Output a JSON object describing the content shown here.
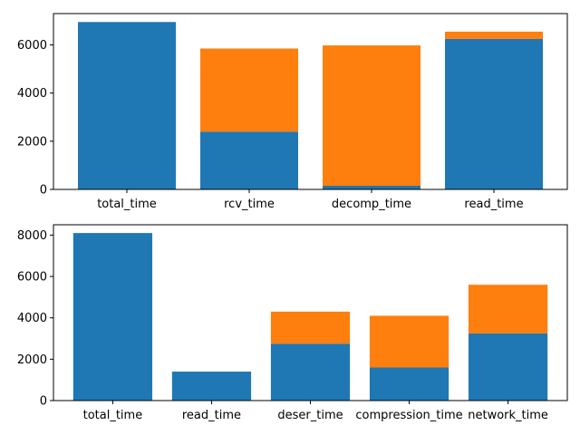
{
  "chart_data": [
    {
      "type": "bar",
      "stacked": true,
      "categories": [
        "total_time",
        "rcv_time",
        "decomp_time",
        "read_time"
      ],
      "series": [
        {
          "values": [
            6950,
            2400,
            150,
            6250
          ],
          "color": "#1f77b4"
        },
        {
          "values": [
            0,
            3450,
            5830,
            300
          ],
          "color": "#ff7f0e"
        }
      ],
      "ylim": [
        0,
        7300
      ],
      "yticks": [
        0,
        2000,
        4000,
        6000
      ],
      "grid": false
    },
    {
      "type": "bar",
      "stacked": true,
      "categories": [
        "total_time",
        "read_time",
        "deser_time",
        "compression_time",
        "network_time"
      ],
      "series": [
        {
          "values": [
            8100,
            1400,
            2750,
            1600,
            3250
          ],
          "color": "#1f77b4"
        },
        {
          "values": [
            0,
            0,
            1550,
            2500,
            2350
          ],
          "color": "#ff7f0e"
        }
      ],
      "ylim": [
        0,
        8500
      ],
      "yticks": [
        0,
        2000,
        4000,
        6000,
        8000
      ],
      "grid": false
    }
  ]
}
